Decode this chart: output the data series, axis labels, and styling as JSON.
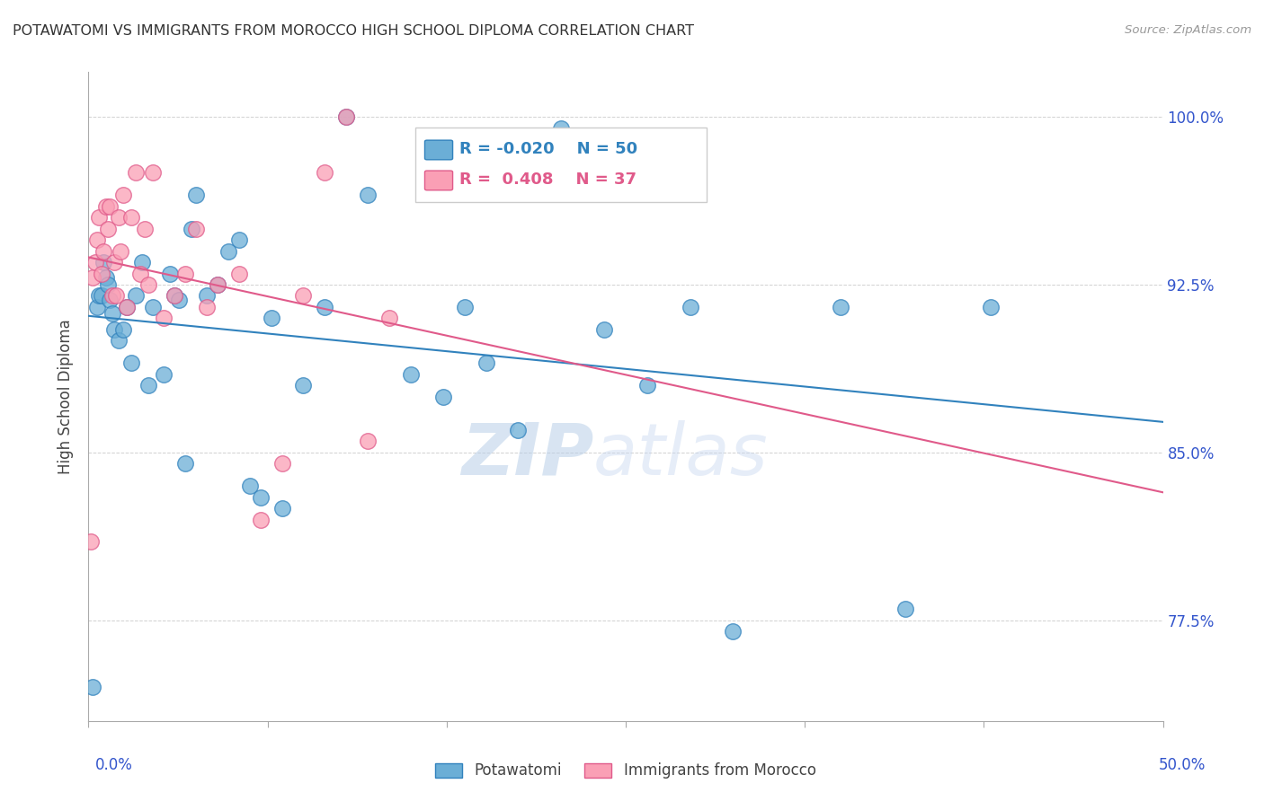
{
  "title": "POTAWATOMI VS IMMIGRANTS FROM MOROCCO HIGH SCHOOL DIPLOMA CORRELATION CHART",
  "source": "Source: ZipAtlas.com",
  "ylabel": "High School Diploma",
  "xlim": [
    0.0,
    0.5
  ],
  "ylim": [
    73.0,
    102.0
  ],
  "legend_blue_label": "Potawatomi",
  "legend_pink_label": "Immigrants from Morocco",
  "blue_R": "-0.020",
  "blue_N": "50",
  "pink_R": "0.408",
  "pink_N": "37",
  "blue_color": "#6baed6",
  "pink_color": "#fa9fb5",
  "blue_line_color": "#3182bd",
  "pink_line_color": "#e05a8a",
  "background_color": "#ffffff",
  "grid_color": "#cccccc",
  "watermark_zip": "ZIP",
  "watermark_atlas": "atlas",
  "ytick_positions": [
    77.5,
    85.0,
    92.5,
    100.0
  ],
  "ytick_labels": [
    "77.5%",
    "85.0%",
    "92.5%",
    "100.0%"
  ],
  "potawatomi_x": [
    0.002,
    0.004,
    0.005,
    0.006,
    0.007,
    0.008,
    0.009,
    0.01,
    0.011,
    0.012,
    0.014,
    0.016,
    0.018,
    0.02,
    0.022,
    0.025,
    0.028,
    0.03,
    0.035,
    0.038,
    0.04,
    0.042,
    0.045,
    0.048,
    0.05,
    0.055,
    0.06,
    0.065,
    0.07,
    0.075,
    0.08,
    0.085,
    0.09,
    0.1,
    0.11,
    0.12,
    0.13,
    0.15,
    0.165,
    0.175,
    0.185,
    0.2,
    0.22,
    0.24,
    0.26,
    0.28,
    0.3,
    0.35,
    0.38,
    0.42
  ],
  "potawatomi_y": [
    74.5,
    91.5,
    92.0,
    92.0,
    93.5,
    92.8,
    92.5,
    91.8,
    91.2,
    90.5,
    90.0,
    90.5,
    91.5,
    89.0,
    92.0,
    93.5,
    88.0,
    91.5,
    88.5,
    93.0,
    92.0,
    91.8,
    84.5,
    95.0,
    96.5,
    92.0,
    92.5,
    94.0,
    94.5,
    83.5,
    83.0,
    91.0,
    82.5,
    88.0,
    91.5,
    100.0,
    96.5,
    88.5,
    87.5,
    91.5,
    89.0,
    86.0,
    99.5,
    90.5,
    88.0,
    91.5,
    77.0,
    91.5,
    78.0,
    91.5
  ],
  "morocco_x": [
    0.001,
    0.002,
    0.003,
    0.004,
    0.005,
    0.006,
    0.007,
    0.008,
    0.009,
    0.01,
    0.011,
    0.012,
    0.013,
    0.014,
    0.015,
    0.016,
    0.018,
    0.02,
    0.022,
    0.024,
    0.026,
    0.028,
    0.03,
    0.035,
    0.04,
    0.045,
    0.05,
    0.055,
    0.06,
    0.07,
    0.08,
    0.09,
    0.1,
    0.11,
    0.12,
    0.13,
    0.14
  ],
  "morocco_y": [
    81.0,
    92.8,
    93.5,
    94.5,
    95.5,
    93.0,
    94.0,
    96.0,
    95.0,
    96.0,
    92.0,
    93.5,
    92.0,
    95.5,
    94.0,
    96.5,
    91.5,
    95.5,
    97.5,
    93.0,
    95.0,
    92.5,
    97.5,
    91.0,
    92.0,
    93.0,
    95.0,
    91.5,
    92.5,
    93.0,
    82.0,
    84.5,
    92.0,
    97.5,
    100.0,
    85.5,
    91.0
  ]
}
